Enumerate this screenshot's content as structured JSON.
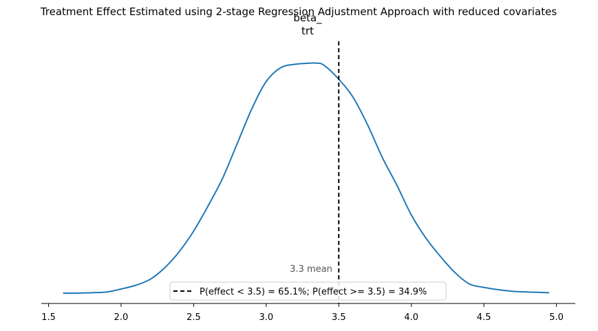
{
  "chart_data": {
    "type": "area",
    "title": "Treatment Effect Estimated using 2-stage Regression Adjustment Approach with reduced covariates",
    "subtitle_lines": [
      "beta_",
      "trt"
    ],
    "xlabel": "",
    "ylabel": "",
    "xlim": [
      1.45,
      5.13
    ],
    "ylim": [
      0,
      1.05
    ],
    "xticks": [
      1.5,
      2.0,
      2.5,
      3.0,
      3.5,
      4.0,
      4.5,
      5.0
    ],
    "xtick_labels": [
      "1.5",
      "2.0",
      "2.5",
      "3.0",
      "3.5",
      "4.0",
      "4.5",
      "5.0"
    ],
    "grid": false,
    "series": [
      {
        "color": "#1f77b4",
        "x": [
          1.6,
          1.7,
          1.8,
          1.9,
          2.0,
          2.1,
          2.2,
          2.3,
          2.4,
          2.5,
          2.6,
          2.7,
          2.8,
          2.9,
          3.0,
          3.1,
          3.2,
          3.3,
          3.35,
          3.4,
          3.5,
          3.6,
          3.7,
          3.8,
          3.9,
          4.0,
          4.1,
          4.2,
          4.3,
          4.4,
          4.5,
          4.6,
          4.7,
          4.8,
          4.95
        ],
        "y": [
          0.0,
          0.0,
          0.002,
          0.005,
          0.018,
          0.034,
          0.06,
          0.11,
          0.18,
          0.27,
          0.38,
          0.5,
          0.65,
          0.8,
          0.92,
          0.98,
          0.995,
          1.0,
          1.0,
          0.99,
          0.93,
          0.85,
          0.73,
          0.59,
          0.47,
          0.34,
          0.24,
          0.16,
          0.09,
          0.04,
          0.025,
          0.015,
          0.008,
          0.005,
          0.002
        ]
      }
    ],
    "mean_value": 3.3,
    "mean_label": "3.3 mean",
    "threshold": 3.5,
    "threshold_color": "#000000",
    "threshold_style": "dashed",
    "legend": {
      "placement": "bottom-center",
      "entries": [
        {
          "label": "P(effect < 3.5) = 65.1%; P(effect >= 3.5) = 34.9%",
          "color": "#000000",
          "style": "dashed"
        }
      ]
    }
  }
}
